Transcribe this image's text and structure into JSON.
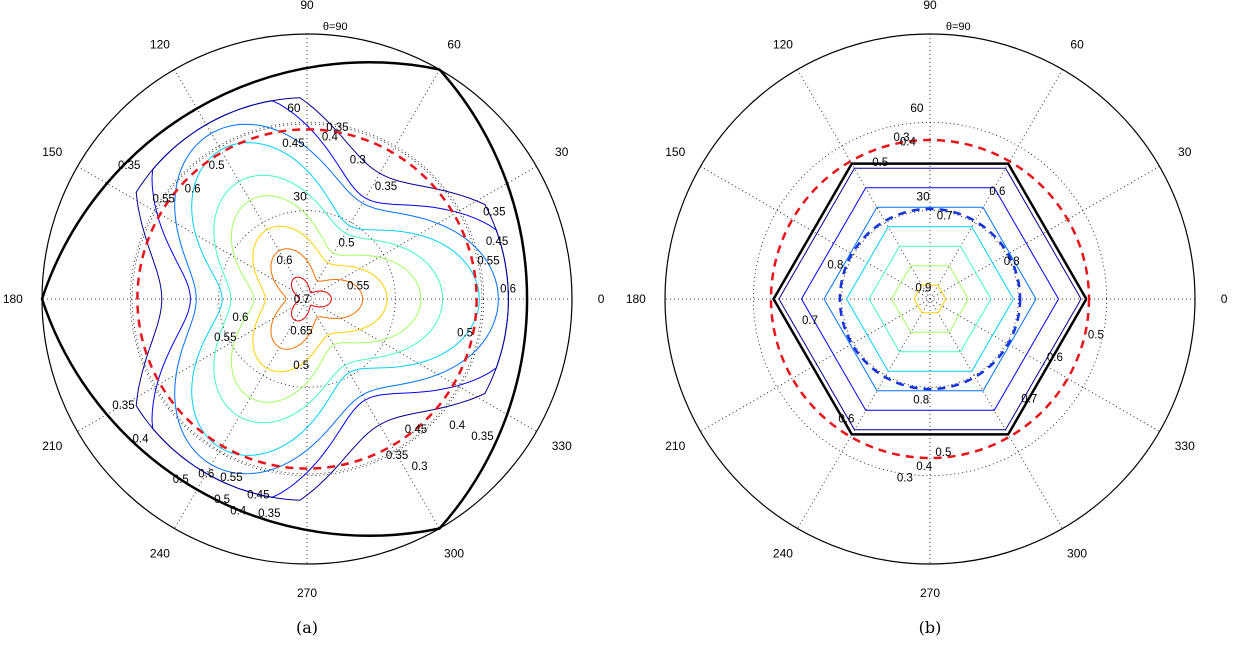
{
  "chart_data": [
    {
      "type": "polar-contour",
      "panel": "(a)",
      "caption": "(a)",
      "theta_title": "θ=90",
      "angular_ticks": [
        "0",
        "30",
        "60",
        "90",
        "120",
        "150",
        "180",
        "210",
        "240",
        "270",
        "300",
        "330"
      ],
      "radial_ticks": [
        "30",
        "60"
      ],
      "contour_levels": [
        "0.3",
        "0.35",
        "0.4",
        "0.45",
        "0.5",
        "0.55",
        "0.6",
        "0.65",
        "0.7"
      ],
      "colors": {
        "boundary": "#000000",
        "dashed_red": "#e8141b",
        "outer": "#000000"
      },
      "contour_labels": [
        {
          "text": "0.7",
          "r": 0.02,
          "a": 180
        },
        {
          "text": "0.65",
          "r": 0.12,
          "a": -100
        },
        {
          "text": "0.6",
          "r": 0.17,
          "a": 120
        },
        {
          "text": "0.55",
          "r": 0.2,
          "a": 15
        },
        {
          "text": "0.6",
          "r": 0.26,
          "a": 195
        },
        {
          "text": "0.55",
          "r": 0.34,
          "a": 205
        },
        {
          "text": "0.5",
          "r": 0.26,
          "a": 55
        },
        {
          "text": "0.5",
          "r": 0.25,
          "a": -95
        },
        {
          "text": "0.45",
          "r": 0.59,
          "a": 95
        },
        {
          "text": "0.35",
          "r": 0.66,
          "a": 80
        },
        {
          "text": "0.4",
          "r": 0.62,
          "a": 82
        },
        {
          "text": "0.3",
          "r": 0.56,
          "a": 70
        },
        {
          "text": "0.35",
          "r": 0.52,
          "a": 55
        },
        {
          "text": "0.5",
          "r": 0.61,
          "a": 124
        },
        {
          "text": "0.6",
          "r": 0.6,
          "a": 136
        },
        {
          "text": "0.45",
          "r": 0.64,
          "a": -50
        },
        {
          "text": "0.4",
          "r": 0.74,
          "a": -40
        },
        {
          "text": "0.35",
          "r": 0.68,
          "a": -60
        },
        {
          "text": "0.3",
          "r": 0.76,
          "a": -56
        },
        {
          "text": "0.35",
          "r": 0.84,
          "a": -38
        },
        {
          "text": "0.5",
          "r": 0.61,
          "a": -12
        },
        {
          "text": "0.6",
          "r": 0.76,
          "a": 3
        },
        {
          "text": "0.55",
          "r": 0.7,
          "a": 12
        },
        {
          "text": "0.45",
          "r": 0.75,
          "a": 17
        },
        {
          "text": "0.35",
          "r": 0.78,
          "a": 25
        },
        {
          "text": "0.35",
          "r": 0.8,
          "a": -150
        },
        {
          "text": "0.4",
          "r": 0.82,
          "a": -140
        },
        {
          "text": "0.5",
          "r": 0.83,
          "a": -125
        },
        {
          "text": "0.6",
          "r": 0.76,
          "a": -120
        },
        {
          "text": "0.55",
          "r": 0.73,
          "a": -113
        },
        {
          "text": "0.45",
          "r": 0.76,
          "a": -104
        },
        {
          "text": "0.35",
          "r": 0.82,
          "a": -100
        },
        {
          "text": "0.5",
          "r": 0.82,
          "a": -113
        },
        {
          "text": "0.4",
          "r": 0.84,
          "a": -108
        },
        {
          "text": "0.35",
          "r": 0.84,
          "a": 143
        },
        {
          "text": "0.55",
          "r": 0.66,
          "a": 145
        }
      ]
    },
    {
      "type": "polar-contour",
      "panel": "(b)",
      "caption": "(b)",
      "theta_title": "θ=90",
      "angular_ticks": [
        "0",
        "30",
        "60",
        "90",
        "120",
        "150",
        "180",
        "210",
        "240",
        "270",
        "300",
        "330"
      ],
      "radial_ticks": [
        "30",
        "60"
      ],
      "contour_levels": [
        "0.3",
        "0.4",
        "0.5",
        "0.6",
        "0.7",
        "0.8",
        "0.9"
      ],
      "colors": {
        "boundary": "#000000",
        "dashed_red": "#e8141b",
        "dashed_blue": "#1432e0",
        "outer": "#000000"
      },
      "contour_labels": [
        {
          "text": "0.9",
          "r": 0.05,
          "a": 120
        },
        {
          "text": "0.8",
          "r": 0.38,
          "a": 160
        },
        {
          "text": "0.8",
          "r": 0.34,
          "a": 25
        },
        {
          "text": "0.8",
          "r": 0.38,
          "a": -95
        },
        {
          "text": "0.7",
          "r": 0.32,
          "a": 80
        },
        {
          "text": "0.7",
          "r": 0.46,
          "a": 190
        },
        {
          "text": "0.7",
          "r": 0.53,
          "a": -45
        },
        {
          "text": "0.6",
          "r": 0.48,
          "a": 58
        },
        {
          "text": "0.6",
          "r": 0.52,
          "a": -25
        },
        {
          "text": "0.6",
          "r": 0.55,
          "a": -125
        },
        {
          "text": "0.5",
          "r": 0.55,
          "a": 110
        },
        {
          "text": "0.5",
          "r": 0.58,
          "a": -85
        },
        {
          "text": "0.5",
          "r": 0.64,
          "a": -12
        },
        {
          "text": "0.4",
          "r": 0.6,
          "a": 98
        },
        {
          "text": "0.4",
          "r": 0.63,
          "a": -92
        },
        {
          "text": "0.3",
          "r": 0.62,
          "a": 100
        },
        {
          "text": "0.3",
          "r": 0.68,
          "a": -98
        }
      ]
    }
  ]
}
